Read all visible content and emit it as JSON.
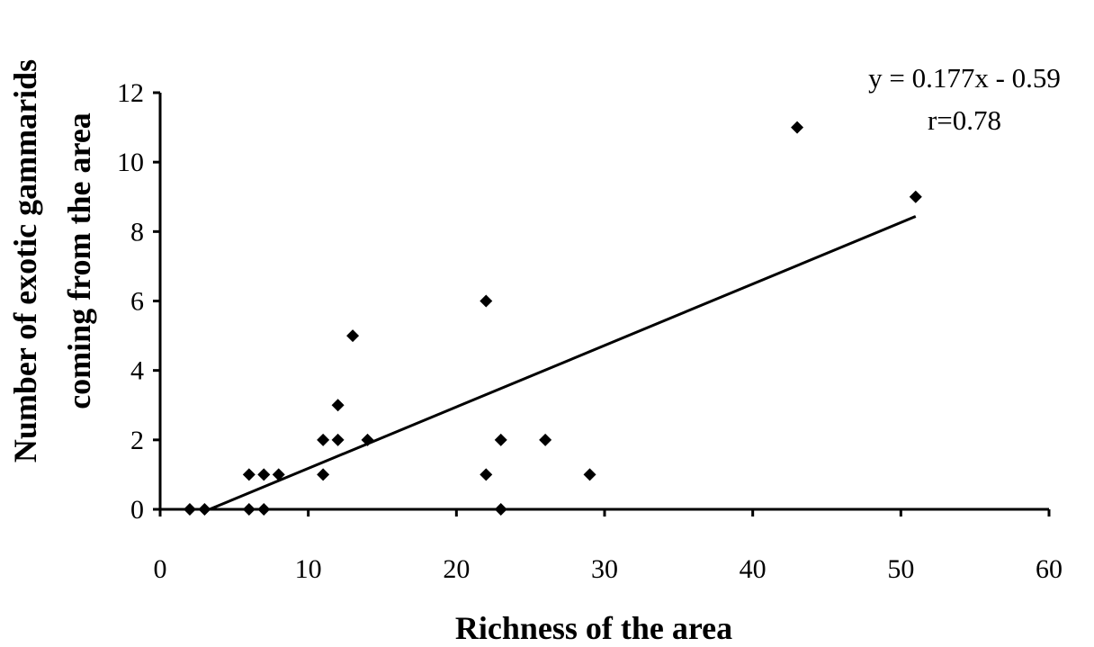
{
  "chart_data": {
    "type": "scatter",
    "title": "",
    "xlabel": "Richness of the area",
    "ylabel_lines": [
      "Number of exotic gammarids",
      "coming from the area"
    ],
    "xlim": [
      0,
      60
    ],
    "ylim": [
      0,
      12
    ],
    "x_ticks": [
      0,
      10,
      20,
      30,
      40,
      50,
      60
    ],
    "y_ticks": [
      0,
      2,
      4,
      6,
      8,
      10,
      12
    ],
    "grid": false,
    "legend": "none",
    "point_color": "#000000",
    "marker": "diamond",
    "points": [
      {
        "x": 2,
        "y": 0
      },
      {
        "x": 3,
        "y": 0
      },
      {
        "x": 6,
        "y": 0
      },
      {
        "x": 7,
        "y": 0
      },
      {
        "x": 6,
        "y": 1
      },
      {
        "x": 7,
        "y": 1
      },
      {
        "x": 8,
        "y": 1
      },
      {
        "x": 11,
        "y": 1
      },
      {
        "x": 11,
        "y": 2
      },
      {
        "x": 12,
        "y": 2
      },
      {
        "x": 12,
        "y": 3
      },
      {
        "x": 13,
        "y": 5
      },
      {
        "x": 14,
        "y": 2
      },
      {
        "x": 22,
        "y": 6
      },
      {
        "x": 22,
        "y": 1
      },
      {
        "x": 23,
        "y": 2
      },
      {
        "x": 23,
        "y": 0
      },
      {
        "x": 26,
        "y": 2
      },
      {
        "x": 29,
        "y": 1
      },
      {
        "x": 43,
        "y": 11
      },
      {
        "x": 51,
        "y": 9
      }
    ],
    "trendline": {
      "type": "linear",
      "slope": 0.177,
      "intercept": -0.59,
      "x_range": [
        3.33,
        51
      ]
    },
    "annotations": [
      "y = 0.177x - 0.59",
      "r=0.78"
    ]
  }
}
